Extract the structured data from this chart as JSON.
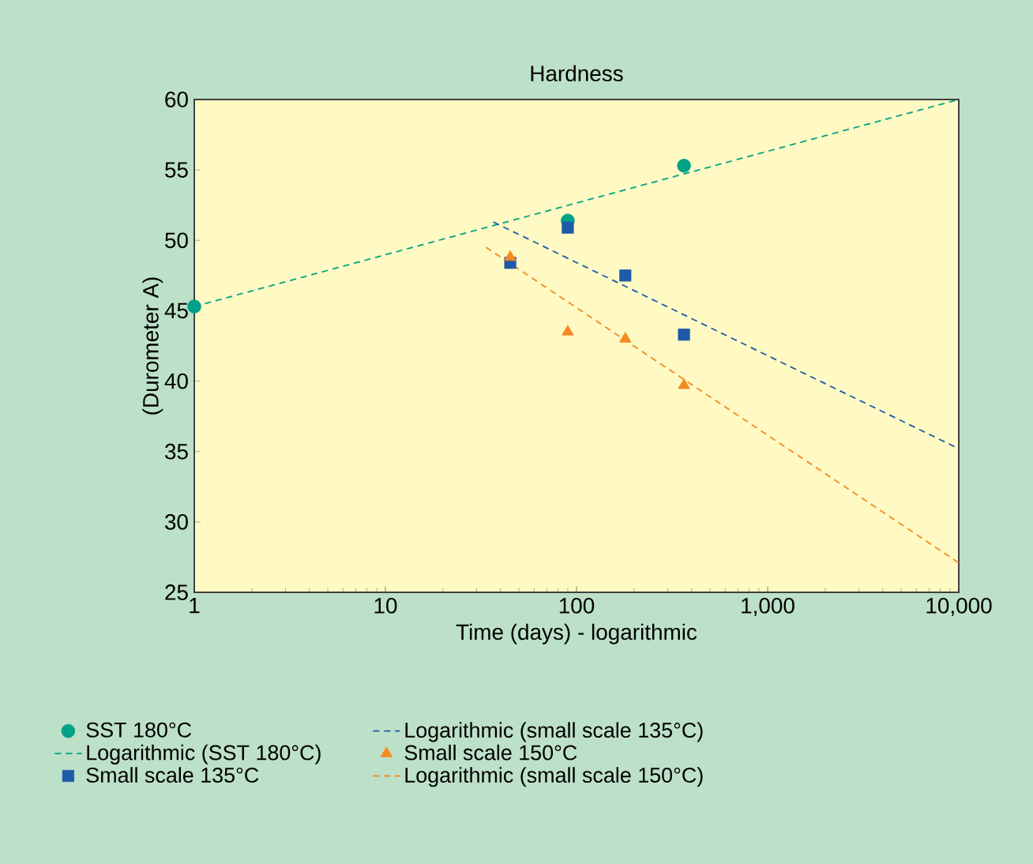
{
  "chart_data": {
    "type": "scatter",
    "title": "Hardness",
    "xlabel": "Time (days) - logarithmic",
    "ylabel": "(Durometer A)",
    "log": "x",
    "xlim": [
      1,
      10000
    ],
    "ylim": [
      25,
      60
    ],
    "xticks": [
      1,
      10,
      100,
      {
        "value": 1000,
        "label": "1,000"
      },
      {
        "value": 10000,
        "label": "10,000"
      }
    ],
    "yticks": [
      25,
      30,
      35,
      40,
      45,
      50,
      55,
      60
    ],
    "grid": false,
    "legend": "bottom",
    "series": [
      {
        "name": "SST 180°C",
        "marker": "circle",
        "color": "#00a287",
        "x": [
          1,
          90,
          365
        ],
        "values": [
          45.3,
          51.4,
          55.3
        ]
      },
      {
        "name": "Logarithmic (SST 180°C)",
        "type": "line",
        "line_style": "dashed",
        "marker": "none",
        "color": "#00a287",
        "x": [
          1,
          10000
        ],
        "values": [
          45.3,
          60
        ]
      },
      {
        "name": "Small scale 135°C",
        "marker": "square",
        "color": "#1f5aa8",
        "x": [
          45,
          90,
          180,
          365
        ],
        "values": [
          48.4,
          50.9,
          47.5,
          43.3
        ]
      },
      {
        "name": "Logarithmic (small scale 135°C)",
        "type": "line",
        "line_style": "dashed",
        "marker": "none",
        "color": "#1f5aa8",
        "x": [
          36.7,
          10000
        ],
        "values": [
          51.3,
          35.2
        ]
      },
      {
        "name": "Small scale 150°C",
        "marker": "triangle",
        "color": "#f48a20",
        "x": [
          45,
          90,
          180,
          365
        ],
        "values": [
          48.8,
          43.5,
          43,
          39.7
        ]
      },
      {
        "name": "Logarithmic (small scale 150°C)",
        "type": "line",
        "line_style": "dashed",
        "marker": "none",
        "color": "#f48a20",
        "x": [
          33.6,
          10000
        ],
        "values": [
          49.5,
          27.1
        ]
      }
    ]
  }
}
